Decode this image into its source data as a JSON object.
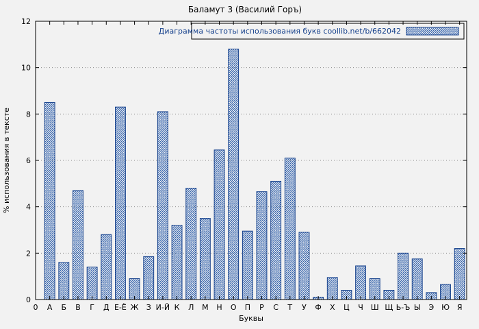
{
  "colors": {
    "background": "#f2f2f2",
    "bar_outline": "#16418c",
    "bar_hatch": "#2a5caa",
    "grid": "#8a8a8a",
    "axis": "#000000"
  },
  "chart_data": {
    "type": "bar",
    "title": "Баламут 3 (Василий Горъ)",
    "legend": "Диаграмма частоты использования букв coollib.net/b/662042",
    "xlabel": "Буквы",
    "ylabel": "% использования в тексте",
    "ylim": [
      0,
      12
    ],
    "ytick_step": 2,
    "origin_label": "0",
    "grid": true,
    "legend_position": "top-right",
    "categories": [
      "А",
      "Б",
      "В",
      "Г",
      "Д",
      "Е-Ё",
      "Ж",
      "З",
      "И-Й",
      "К",
      "Л",
      "М",
      "Н",
      "О",
      "П",
      "Р",
      "С",
      "Т",
      "У",
      "Ф",
      "Х",
      "Ц",
      "Ч",
      "Ш",
      "Щ",
      "Ь-Ъ",
      "Ы",
      "Э",
      "Ю",
      "Я"
    ],
    "values": [
      8.5,
      1.6,
      4.7,
      1.4,
      2.8,
      8.3,
      0.9,
      1.85,
      8.1,
      3.2,
      4.8,
      3.5,
      6.45,
      10.8,
      2.95,
      4.65,
      5.1,
      6.1,
      2.9,
      0.1,
      0.95,
      0.4,
      1.45,
      0.9,
      0.4,
      2.0,
      1.75,
      0.3,
      0.65,
      2.2
    ]
  }
}
